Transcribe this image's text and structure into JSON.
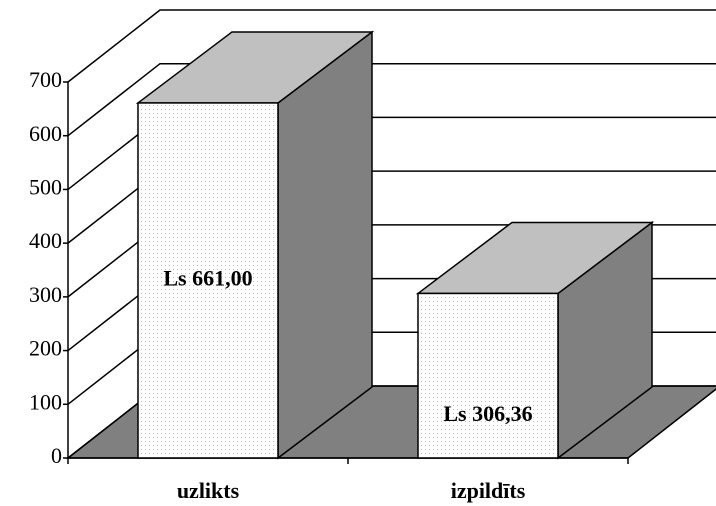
{
  "chart_data": {
    "type": "bar3d",
    "categories": [
      "uzlikts",
      "izpildīts"
    ],
    "values": [
      661,
      306.36
    ],
    "value_labels": [
      "Ls 661,00",
      "Ls 306,36"
    ],
    "color": "#ffffff",
    "ylim": [
      0,
      700
    ],
    "yticks": [
      0,
      100,
      200,
      300,
      400,
      500,
      600,
      700
    ],
    "grid": true
  }
}
